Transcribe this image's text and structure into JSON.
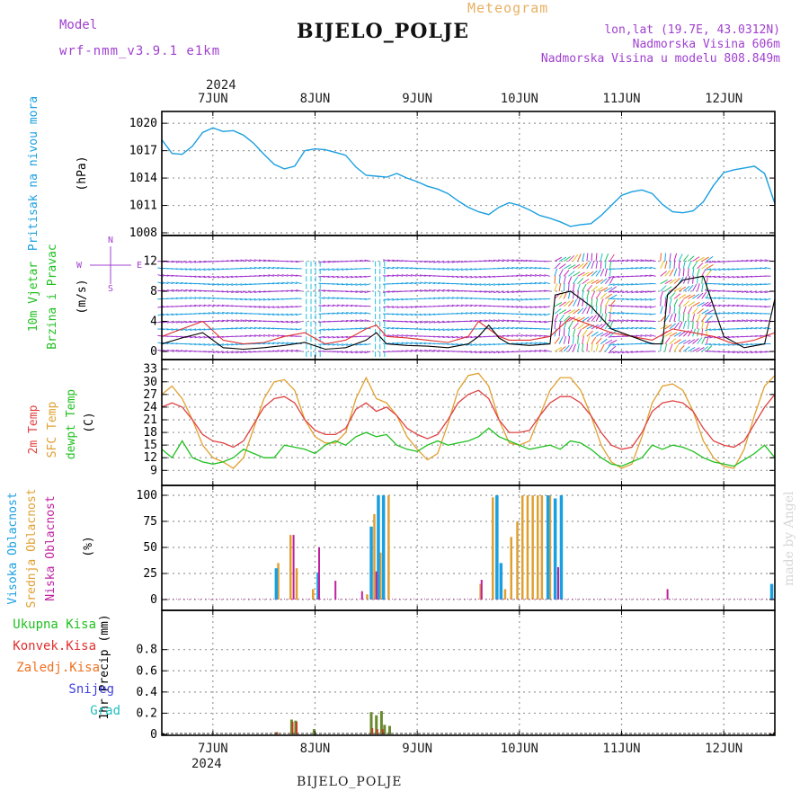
{
  "header": {
    "model_label": "Model",
    "model_name": "wrf-nmm_v3.9.1 e1km",
    "meteogram_label": "Meteogram",
    "location_title": "BIJELO_POLJE",
    "coords": "lon,lat (19.7E, 43.0312N)",
    "elevation": "Nadmorska Visina 606m",
    "model_elevation": "Nadmorska Visina u modelu 808.849m",
    "footer_title": "BIJELO_POLJE",
    "credit": "made by Angel"
  },
  "colors": {
    "pressure": "#1a9fe0",
    "wind_speed": "#000000",
    "wind_gust": "#e03030",
    "temp2m": "#e04040",
    "sfc_temp": "#e0a030",
    "dewpoint": "#20c020",
    "cloud_high": "#1a9fe0",
    "cloud_mid": "#e0a030",
    "cloud_low": "#c020a0",
    "precip_total": "#20c020",
    "precip_conv": "#e03030",
    "precip_strat": "#f07020",
    "snow": "#4040e0",
    "hail": "#20c0c0",
    "purple_text": "#a040d0",
    "meteogram_text": "#e8b060"
  },
  "chart_data": [
    {
      "type": "line",
      "panel": "pressure",
      "ylabel_lines": [
        "Pritisak na nivou mora",
        "(hPa)"
      ],
      "yticks": [
        1008,
        1011,
        1014,
        1017,
        1020
      ],
      "ylim": [
        1008,
        1021
      ],
      "xlim_days": [
        6.5,
        12.5
      ],
      "top_year": "2024",
      "top_ticks": [
        "7JUN",
        "8JUN",
        "9JUN",
        "10JUN",
        "11JUN",
        "12JUN"
      ],
      "series": [
        {
          "x": [
            6.5,
            6.6,
            6.7,
            6.8,
            6.9,
            7.0,
            7.1,
            7.2,
            7.3,
            7.4,
            7.5,
            7.6,
            7.7,
            7.8,
            7.9,
            8.0,
            8.1,
            8.2,
            8.3,
            8.4,
            8.5,
            8.6,
            8.7,
            8.8,
            8.9,
            9.0,
            9.1,
            9.2,
            9.3,
            9.4,
            9.5,
            9.6,
            9.7,
            9.8,
            9.9,
            10.0,
            10.1,
            10.2,
            10.3,
            10.4,
            10.5,
            10.6,
            10.7,
            10.8,
            10.9,
            11.0,
            11.1,
            11.2,
            11.3,
            11.4,
            11.5,
            11.6,
            11.7,
            11.8,
            11.9,
            12.0,
            12.1,
            12.2,
            12.3,
            12.4,
            12.5
          ],
          "y": [
            1018.2,
            1016.7,
            1016.6,
            1017.5,
            1019.0,
            1019.5,
            1019.1,
            1019.2,
            1018.7,
            1017.8,
            1016.6,
            1015.5,
            1015.0,
            1015.3,
            1017.0,
            1017.2,
            1017.1,
            1016.8,
            1016.5,
            1015.2,
            1014.3,
            1014.2,
            1014.1,
            1014.5,
            1014.0,
            1013.6,
            1013.1,
            1012.8,
            1012.3,
            1011.5,
            1010.8,
            1010.3,
            1010.0,
            1010.8,
            1011.3,
            1011.0,
            1010.5,
            1009.9,
            1009.6,
            1009.2,
            1008.7,
            1008.9,
            1009.0,
            1009.9,
            1011.0,
            1012.1,
            1012.5,
            1012.7,
            1012.3,
            1011.1,
            1010.3,
            1010.2,
            1010.4,
            1011.4,
            1013.2,
            1014.6,
            1014.9,
            1015.1,
            1015.3,
            1014.5,
            1011.2
          ]
        }
      ]
    },
    {
      "type": "line",
      "panel": "wind",
      "ylabel_lines": [
        "10m Vjetar",
        "Brzina i Pravac",
        "(m/s)"
      ],
      "compass": [
        "N",
        "W",
        "E",
        "S"
      ],
      "yticks": [
        0,
        4,
        8,
        12
      ],
      "ylim": [
        0,
        13.5
      ],
      "barb_rows": [
        0,
        1,
        2,
        3,
        4,
        5,
        6,
        7,
        8,
        9,
        10,
        11,
        12
      ],
      "series": [
        {
          "name": "speed",
          "x": [
            6.5,
            6.7,
            6.9,
            7.1,
            7.3,
            7.5,
            7.7,
            7.9,
            8.1,
            8.3,
            8.5,
            8.6,
            8.7,
            8.9,
            9.1,
            9.3,
            9.5,
            9.6,
            9.7,
            9.8,
            9.9,
            10.1,
            10.3,
            10.35,
            10.5,
            10.7,
            10.9,
            11.1,
            11.3,
            11.4,
            11.45,
            11.6,
            11.8,
            12.0,
            12.2,
            12.4,
            12.5
          ],
          "y": [
            1.0,
            1.8,
            2.5,
            0.5,
            0.3,
            0.5,
            0.8,
            1.2,
            0.3,
            0.5,
            1.5,
            2.5,
            1.0,
            0.8,
            0.7,
            0.5,
            1.0,
            2.0,
            3.5,
            1.8,
            1.0,
            0.8,
            1.0,
            7.5,
            8.0,
            6.0,
            3.0,
            2.0,
            1.0,
            1.0,
            7.5,
            9.5,
            10.0,
            2.0,
            0.5,
            1.0,
            7.0
          ]
        },
        {
          "name": "gust",
          "x": [
            6.5,
            6.7,
            6.9,
            7.1,
            7.3,
            7.5,
            7.7,
            7.9,
            8.1,
            8.3,
            8.5,
            8.6,
            8.7,
            8.9,
            9.1,
            9.3,
            9.5,
            9.6,
            9.7,
            9.8,
            9.9,
            10.1,
            10.3,
            10.5,
            10.7,
            10.9,
            11.1,
            11.3,
            11.5,
            11.7,
            11.9,
            12.1,
            12.3,
            12.5
          ],
          "y": [
            2.0,
            3.0,
            4.0,
            1.5,
            1.0,
            1.2,
            2.0,
            2.5,
            1.0,
            1.5,
            3.0,
            3.5,
            2.0,
            1.8,
            1.5,
            1.2,
            2.0,
            4.0,
            3.0,
            2.0,
            1.5,
            1.5,
            2.0,
            4.5,
            3.5,
            2.5,
            2.0,
            1.5,
            3.0,
            2.5,
            2.0,
            1.0,
            1.5,
            2.5
          ]
        }
      ]
    },
    {
      "type": "line",
      "panel": "temperature",
      "ylabel_lines": [
        "2m Temp",
        "SFC Temp",
        "dewpt Temp",
        "(C)"
      ],
      "yticks": [
        9,
        12,
        15,
        18,
        21,
        24,
        27,
        30,
        33
      ],
      "ylim": [
        8,
        34
      ],
      "series": [
        {
          "name": "2m Temp",
          "x": [
            6.5,
            6.6,
            6.7,
            6.8,
            6.9,
            7.0,
            7.1,
            7.2,
            7.3,
            7.4,
            7.5,
            7.6,
            7.7,
            7.8,
            7.9,
            8.0,
            8.1,
            8.2,
            8.3,
            8.4,
            8.5,
            8.6,
            8.7,
            8.8,
            8.9,
            9.0,
            9.1,
            9.2,
            9.3,
            9.4,
            9.5,
            9.6,
            9.7,
            9.8,
            9.9,
            10.0,
            10.1,
            10.2,
            10.3,
            10.4,
            10.5,
            10.6,
            10.7,
            10.8,
            10.9,
            11.0,
            11.1,
            11.2,
            11.3,
            11.4,
            11.5,
            11.6,
            11.7,
            11.8,
            11.9,
            12.0,
            12.1,
            12.2,
            12.3,
            12.4,
            12.5
          ],
          "y": [
            24,
            25,
            24,
            21,
            17.5,
            16,
            15.5,
            14.5,
            16,
            20,
            24,
            26,
            26.5,
            25,
            21,
            18.5,
            17.5,
            17.5,
            19,
            23.5,
            25,
            23,
            24,
            22,
            19,
            17.5,
            16.5,
            17.5,
            21,
            25,
            27,
            28,
            26,
            21,
            18,
            18,
            18.5,
            22,
            25,
            26.5,
            26.5,
            25,
            22,
            18,
            15,
            14,
            14.5,
            18,
            23,
            25,
            25.5,
            25,
            23,
            19,
            16,
            15,
            14.5,
            16,
            20,
            24,
            27
          ]
        },
        {
          "name": "SFC Temp",
          "x": [
            6.5,
            6.6,
            6.7,
            6.8,
            6.9,
            7.0,
            7.1,
            7.2,
            7.3,
            7.4,
            7.5,
            7.6,
            7.7,
            7.8,
            7.9,
            8.0,
            8.1,
            8.2,
            8.3,
            8.4,
            8.5,
            8.6,
            8.7,
            8.8,
            8.9,
            9.0,
            9.1,
            9.2,
            9.3,
            9.4,
            9.5,
            9.6,
            9.7,
            9.8,
            9.9,
            10.0,
            10.1,
            10.2,
            10.3,
            10.4,
            10.5,
            10.6,
            10.7,
            10.8,
            10.9,
            11.0,
            11.1,
            11.2,
            11.3,
            11.4,
            11.5,
            11.6,
            11.7,
            11.8,
            11.9,
            12.0,
            12.1,
            12.2,
            12.3,
            12.4,
            12.5
          ],
          "y": [
            27,
            29,
            26,
            21,
            15,
            12,
            11,
            9.5,
            12,
            19,
            26,
            30,
            30.5,
            28,
            21,
            17,
            15.5,
            15.5,
            18,
            26,
            31,
            26,
            25,
            22,
            17,
            14,
            11.5,
            13,
            20,
            28,
            31.5,
            32,
            29,
            21,
            15.5,
            15,
            16,
            22,
            28,
            31,
            31,
            28,
            22,
            15,
            11,
            9.5,
            10.5,
            17,
            25,
            29,
            29.5,
            28,
            23,
            16,
            12,
            10,
            9.5,
            14,
            22,
            29,
            31.5
          ]
        },
        {
          "name": "dewpt Temp",
          "x": [
            6.5,
            6.6,
            6.7,
            6.8,
            6.9,
            7.0,
            7.1,
            7.2,
            7.3,
            7.4,
            7.5,
            7.6,
            7.7,
            7.8,
            7.9,
            8.0,
            8.1,
            8.2,
            8.3,
            8.4,
            8.5,
            8.6,
            8.7,
            8.8,
            8.9,
            9.0,
            9.1,
            9.2,
            9.3,
            9.4,
            9.5,
            9.6,
            9.7,
            9.8,
            9.9,
            10.0,
            10.1,
            10.2,
            10.3,
            10.4,
            10.5,
            10.6,
            10.7,
            10.8,
            10.9,
            11.0,
            11.1,
            11.2,
            11.3,
            11.4,
            11.5,
            11.6,
            11.7,
            11.8,
            11.9,
            12.0,
            12.1,
            12.2,
            12.3,
            12.4,
            12.5
          ],
          "y": [
            14,
            12,
            16,
            12,
            11,
            10.5,
            11,
            12,
            14,
            13,
            12,
            12,
            15,
            14.5,
            14,
            13,
            15,
            16,
            15,
            17,
            18,
            17,
            17.5,
            15,
            14,
            13.5,
            15,
            16,
            15,
            15.5,
            16,
            17,
            19,
            17,
            16,
            15,
            14,
            14.5,
            15,
            14,
            16,
            15.5,
            14,
            12,
            10.5,
            10,
            11,
            12,
            15,
            14,
            15,
            14.5,
            13.5,
            12,
            11,
            10.5,
            10,
            11.5,
            13,
            15,
            12
          ]
        }
      ]
    },
    {
      "type": "bar",
      "panel": "cloud",
      "ylabel_lines": [
        "Visoka Oblacnost",
        "Srednja Oblacnost",
        "Niska Oblacnost",
        "(%)"
      ],
      "yticks": [
        0,
        25,
        50,
        75,
        100
      ],
      "ylim": [
        0,
        100
      ],
      "series": [
        {
          "name": "Visoka Oblacnost",
          "x": [
            7.62,
            8.03,
            8.55,
            8.62,
            8.67,
            9.78,
            9.82,
            10.28,
            10.35,
            10.41,
            12.47
          ],
          "values": [
            30,
            26,
            70,
            100,
            100,
            100,
            35,
            100,
            97,
            100,
            15
          ]
        },
        {
          "name": "Srednja Oblacnost",
          "x": [
            7.64,
            7.76,
            7.82,
            7.98,
            8.51,
            8.58,
            8.64,
            8.72,
            9.62,
            9.74,
            9.86,
            9.92,
            9.98,
            10.03,
            10.08,
            10.13,
            10.18,
            10.22,
            10.3
          ],
          "values": [
            35,
            62,
            30,
            10,
            5,
            82,
            45,
            100,
            15,
            98,
            10,
            60,
            75,
            100,
            100,
            100,
            100,
            100,
            100
          ]
        },
        {
          "name": "Niska Oblacnost",
          "x": [
            7.79,
            8.04,
            8.2,
            8.46,
            8.6,
            9.63,
            10.38,
            11.45
          ],
          "values": [
            62,
            50,
            18,
            8,
            27,
            19,
            31,
            10
          ]
        }
      ]
    },
    {
      "type": "bar",
      "panel": "precip",
      "ylabel_lines": [
        "1hr Precip (mm)"
      ],
      "legend": [
        "Ukupna Kisa",
        "Konvek.Kisa",
        "Zaledj.Kisa",
        "Snijeg",
        "Grad"
      ],
      "yticks": [
        0,
        0.2,
        0.4,
        0.6,
        0.8
      ],
      "ylim": [
        0,
        0.95
      ],
      "bottom_year": "2024",
      "bottom_ticks": [
        "7JUN",
        "8JUN",
        "9JUN",
        "10JUN",
        "11JUN",
        "12JUN"
      ],
      "series": [
        {
          "name": "Ukupna Kisa",
          "x": [
            7.62,
            7.77,
            7.81,
            7.99,
            8.55,
            8.6,
            8.65,
            8.68,
            8.73
          ],
          "values": [
            0.02,
            0.14,
            0.13,
            0.05,
            0.21,
            0.18,
            0.22,
            0.09,
            0.08
          ]
        },
        {
          "name": "Konvek.Kisa",
          "x": [
            7.63,
            7.78,
            7.82,
            8.56,
            8.61,
            8.66,
            12.49
          ],
          "values": [
            0.02,
            0.12,
            0.12,
            0.06,
            0.05,
            0.05,
            0.02
          ]
        }
      ]
    }
  ]
}
